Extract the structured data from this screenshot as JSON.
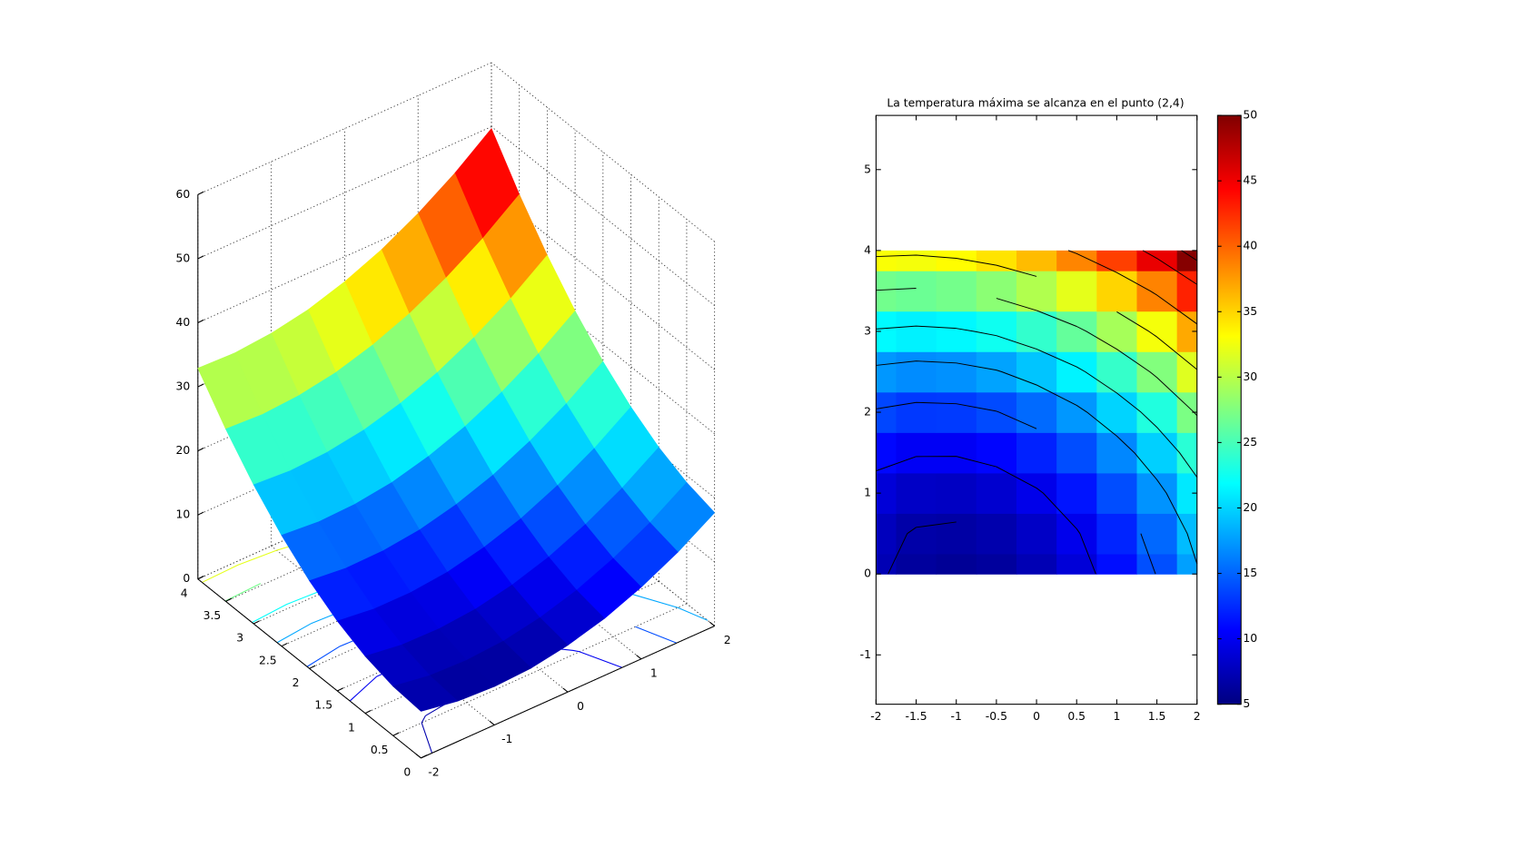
{
  "chart_data": [
    {
      "type": "surface",
      "x": [
        -2,
        -1.5,
        -1,
        -0.5,
        0,
        0.5,
        1,
        1.5,
        2
      ],
      "y": [
        0,
        0.5,
        1,
        1.5,
        2,
        2.5,
        3,
        3.5,
        4
      ],
      "z": [
        [
          7.3,
          6.3,
          6,
          6.3,
          7.3,
          8.9,
          11.2,
          14.1,
          17.7
        ],
        [
          7.7,
          6.8,
          6.6,
          7.0,
          8.1,
          9.8,
          12.2,
          15.2,
          18.9
        ],
        [
          8.9,
          8.1,
          8.0,
          8.5,
          9.7,
          11.5,
          14.0,
          17.1,
          20.9
        ],
        [
          10.9,
          10.2,
          10.2,
          10.8,
          12.1,
          14.0,
          16.6,
          19.8,
          23.7
        ],
        [
          13.7,
          13.1,
          13.2,
          13.9,
          15.3,
          17.3,
          20.0,
          23.3,
          27.3
        ],
        [
          17.3,
          16.8,
          17.0,
          17.8,
          19.3,
          21.4,
          24.2,
          27.6,
          31.7
        ],
        [
          21.7,
          21.3,
          21.6,
          22.5,
          24.1,
          26.3,
          29.2,
          32.7,
          36.9
        ],
        [
          26.9,
          26.6,
          27.0,
          28.0,
          29.7,
          32.0,
          35.0,
          38.6,
          42.9
        ],
        [
          32.9,
          32.7,
          33.2,
          34.3,
          36.1,
          38.5,
          41.6,
          45.3,
          49.7
        ]
      ],
      "clim": [
        5,
        50
      ],
      "contour_levels": [
        7,
        10,
        14,
        18,
        22,
        27,
        32,
        38,
        44,
        48
      ],
      "xlim": [
        -2,
        2
      ],
      "xticks": [
        -2,
        -1,
        0,
        1,
        2
      ],
      "ylim": [
        0,
        4
      ],
      "yticks": [
        0,
        0.5,
        1,
        1.5,
        2,
        2.5,
        3,
        3.5,
        4
      ],
      "zlim": [
        0,
        60
      ],
      "zticks": [
        0,
        10,
        20,
        30,
        40,
        50,
        60
      ],
      "grid": true
    },
    {
      "type": "heatmap",
      "title": "La temperatura máxima se alcanza en el punto (2,4)",
      "x": [
        -2,
        -1.5,
        -1,
        -0.5,
        0,
        0.5,
        1,
        1.5,
        2
      ],
      "y": [
        0,
        0.5,
        1,
        1.5,
        2,
        2.5,
        3,
        3.5,
        4
      ],
      "z": [
        [
          7.3,
          6.3,
          6,
          6.3,
          7.3,
          8.9,
          11.2,
          14.1,
          17.7
        ],
        [
          7.7,
          6.8,
          6.6,
          7.0,
          8.1,
          9.8,
          12.2,
          15.2,
          18.9
        ],
        [
          8.9,
          8.1,
          8.0,
          8.5,
          9.7,
          11.5,
          14.0,
          17.1,
          20.9
        ],
        [
          10.9,
          10.2,
          10.2,
          10.8,
          12.1,
          14.0,
          16.6,
          19.8,
          23.7
        ],
        [
          13.7,
          13.1,
          13.2,
          13.9,
          15.3,
          17.3,
          20.0,
          23.3,
          27.3
        ],
        [
          17.3,
          16.8,
          17.0,
          17.8,
          19.3,
          21.4,
          24.2,
          27.6,
          31.7
        ],
        [
          21.7,
          21.3,
          21.6,
          22.5,
          24.1,
          26.3,
          29.2,
          32.7,
          36.9
        ],
        [
          26.9,
          26.6,
          27.0,
          28.0,
          29.7,
          32.0,
          35.0,
          38.6,
          42.9
        ],
        [
          32.9,
          32.7,
          33.2,
          34.3,
          36.1,
          38.5,
          41.6,
          45.3,
          49.7
        ]
      ],
      "contour_levels": [
        7,
        10,
        14,
        18,
        22,
        27,
        32,
        38,
        44,
        48
      ],
      "contour_color": "#000000",
      "xlim": [
        -2,
        2
      ],
      "xticks": [
        -2,
        -1.5,
        -1,
        -0.5,
        0,
        0.5,
        1,
        1.5,
        2
      ],
      "ylim": [
        -1.61,
        5.67
      ],
      "yticks": [
        -1,
        0,
        1,
        2,
        3,
        4,
        5
      ],
      "clim": [
        5,
        50
      ],
      "cticks": [
        5,
        10,
        15,
        20,
        25,
        30,
        35,
        40,
        45,
        50
      ]
    }
  ]
}
